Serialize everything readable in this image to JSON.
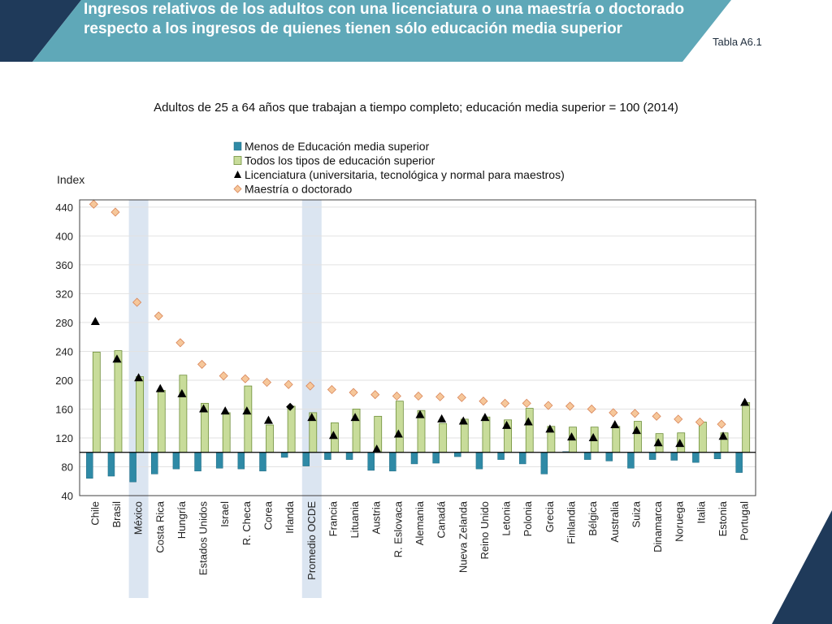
{
  "header": {
    "title": "Ingresos relativos de los adultos con una licenciatura o una maestría o doctorado respecto a los ingresos de quienes tienen  sólo educación media superior",
    "table_ref": "Tabla A6.1"
  },
  "colors": {
    "banner_teal": "#5fa8b8",
    "banner_navy": "#1f3a5a",
    "bar_below": "#2f8aa6",
    "bar_tertiary": "#c8dc9a",
    "bar_tertiary_stroke": "#6f8f3a",
    "marker_bachelor": "#000000",
    "marker_master": "#f6c79a",
    "marker_master_stroke": "#d9865a",
    "highlight": "#dbe5f1"
  },
  "chart_data": {
    "type": "bar",
    "title": "Adultos de 25 a 64 años que trabajan a tiempo completo; educación media superior = 100 (2014)",
    "ylabel": "Index",
    "xlabel": "",
    "ylim": [
      40,
      450
    ],
    "yticks": [
      40,
      80,
      120,
      160,
      200,
      240,
      280,
      320,
      360,
      400,
      440
    ],
    "baseline": 100,
    "legend": [
      "Menos de Educación media superior",
      "Todos los tipos de educación superior",
      "Licenciatura (universitaria, tecnológica y normal para maestros)",
      "Maestría o doctorado"
    ],
    "highlighted_categories": [
      "México",
      "Promedio OCDE"
    ],
    "categories": [
      "Chile",
      "Brasil",
      "México",
      "Costa Rica",
      "Hungría",
      "Estados Unidos",
      "Israel",
      "R. Checa",
      "Corea",
      "Irlanda",
      "Promedio OCDE",
      "Francia",
      "Lituania",
      "Austria",
      "R. Eslovaca",
      "Alemania",
      "Canadá",
      "Nueva Zelanda",
      "Reino Unido",
      "Letonia",
      "Polonia",
      "Grecia",
      "Finlandia",
      "Bélgica",
      "Australia",
      "Suiza",
      "Dinamarca",
      "Noruega",
      "Italia",
      "Estonia",
      "Portugal"
    ],
    "series": [
      {
        "name": "Menos de Educación media superior",
        "type": "bar",
        "values": [
          64,
          67,
          59,
          70,
          77,
          74,
          78,
          77,
          74,
          93,
          81,
          90,
          90,
          75,
          74,
          84,
          85,
          94,
          77,
          90,
          84,
          70,
          101,
          90,
          88,
          78,
          90,
          89,
          86,
          91,
          72
        ]
      },
      {
        "name": "Todos los tipos de educación superior",
        "type": "bar",
        "values": [
          239,
          241,
          205,
          186,
          207,
          168,
          155,
          192,
          138,
          164,
          155,
          141,
          160,
          150,
          171,
          158,
          140,
          146,
          149,
          145,
          161,
          136,
          135,
          135,
          136,
          143,
          126,
          127,
          142,
          127,
          169
        ]
      },
      {
        "name": "Licenciatura (universitaria, tecnológica y normal para maestros)",
        "type": "marker",
        "values": [
          281,
          229,
          203,
          188,
          181,
          160,
          157,
          157,
          144,
          163,
          148,
          123,
          148,
          104,
          125,
          152,
          146,
          143,
          148,
          137,
          142,
          132,
          121,
          120,
          138,
          130,
          113,
          112,
          null,
          122,
          169
        ]
      },
      {
        "name": "Maestría o doctorado",
        "type": "marker",
        "values": [
          444,
          433,
          308,
          289,
          252,
          222,
          206,
          202,
          197,
          194,
          192,
          187,
          183,
          180,
          178,
          178,
          177,
          176,
          171,
          168,
          168,
          165,
          164,
          160,
          155,
          154,
          150,
          146,
          142,
          139,
          null
        ]
      }
    ]
  }
}
